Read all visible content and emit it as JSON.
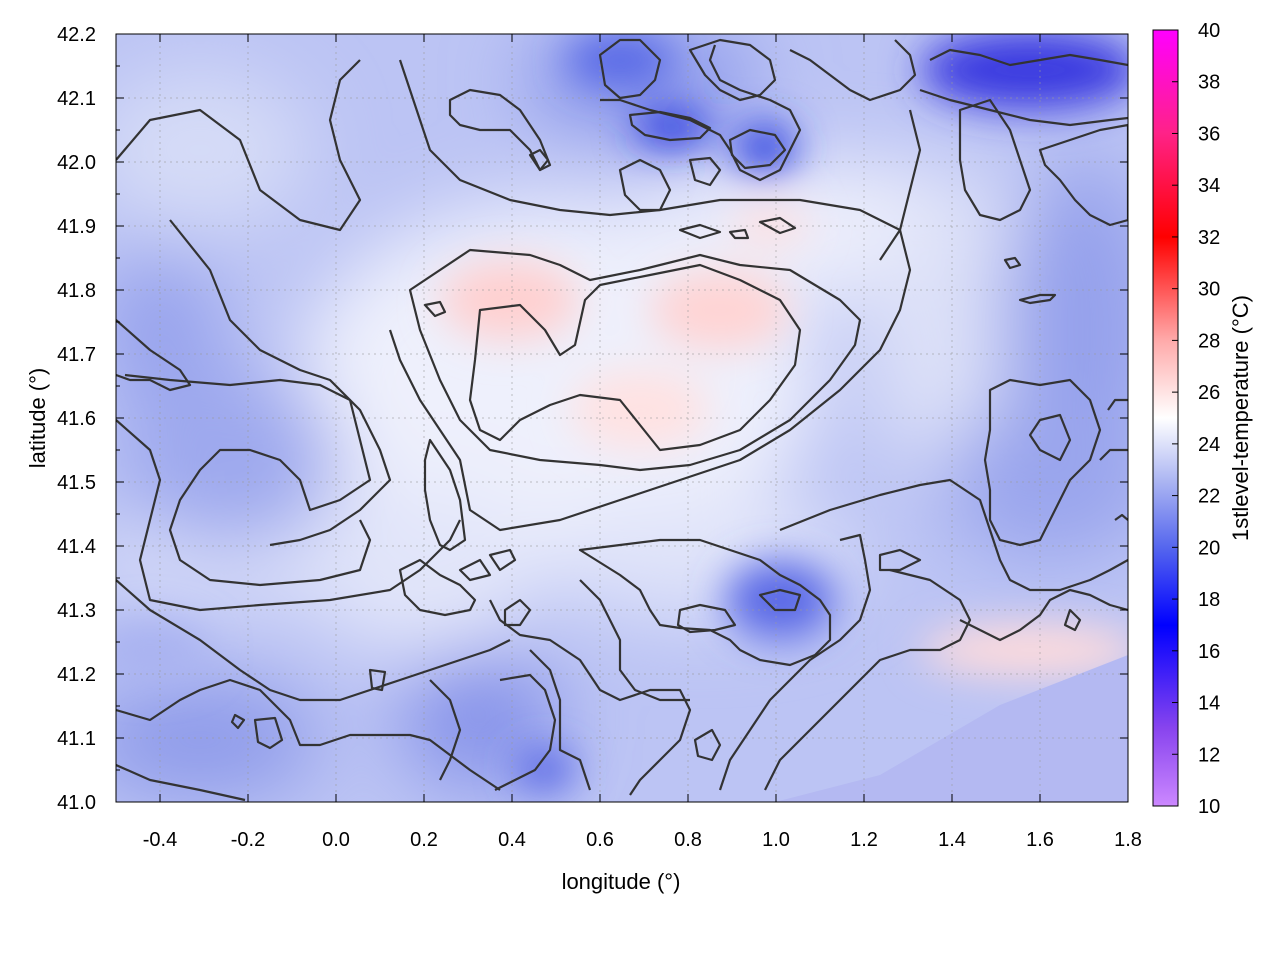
{
  "chart_data": {
    "type": "heatmap",
    "title": "",
    "xlabel": "longitude (°)",
    "ylabel": "latitude (°)",
    "colorbar_label": "1stlevel-temperature (°C)",
    "xlim": [
      -0.5,
      1.8
    ],
    "ylim": [
      41.0,
      42.2
    ],
    "zlim": [
      10,
      40
    ],
    "x_ticks": [
      "-0.4",
      "-0.2",
      "0.0",
      "0.2",
      "0.4",
      "0.6",
      "0.8",
      "1.0",
      "1.2",
      "1.4",
      "1.6",
      "1.8"
    ],
    "x_tick_values": [
      -0.4,
      -0.2,
      0.0,
      0.2,
      0.4,
      0.6,
      0.8,
      1.0,
      1.2,
      1.4,
      1.6,
      1.8
    ],
    "y_ticks": [
      "41.0",
      "41.1",
      "41.2",
      "41.3",
      "41.4",
      "41.5",
      "41.6",
      "41.7",
      "41.8",
      "41.9",
      "42.0",
      "42.1",
      "42.2"
    ],
    "y_tick_values": [
      41.0,
      41.1,
      41.2,
      41.3,
      41.4,
      41.5,
      41.6,
      41.7,
      41.8,
      41.9,
      42.0,
      42.1,
      42.2
    ],
    "colorbar_ticks": [
      "10",
      "12",
      "14",
      "16",
      "18",
      "20",
      "22",
      "24",
      "26",
      "28",
      "30",
      "32",
      "34",
      "36",
      "38",
      "40"
    ],
    "colorbar_tick_values": [
      10,
      12,
      14,
      16,
      18,
      20,
      22,
      24,
      26,
      28,
      30,
      32,
      34,
      36,
      38,
      40
    ],
    "colormap": [
      {
        "value": 10,
        "color": "#cc88ff"
      },
      {
        "value": 13,
        "color": "#8844ee"
      },
      {
        "value": 17,
        "color": "#0000ff"
      },
      {
        "value": 20,
        "color": "#5566ee"
      },
      {
        "value": 22.5,
        "color": "#aab4f2"
      },
      {
        "value": 25,
        "color": "#ffffff"
      },
      {
        "value": 28,
        "color": "#ffaaaa"
      },
      {
        "value": 32,
        "color": "#ff0000"
      },
      {
        "value": 36,
        "color": "#ff2288"
      },
      {
        "value": 40,
        "color": "#ff00ff"
      }
    ],
    "grid": true,
    "warm_regions": [
      {
        "lon": 0.45,
        "lat": 41.77,
        "temp": 26.5
      },
      {
        "lon": 0.85,
        "lat": 41.72,
        "temp": 26.0
      },
      {
        "lon": 0.7,
        "lat": 41.58,
        "temp": 25.5
      },
      {
        "lon": 1.4,
        "lat": 41.22,
        "temp": 25.5
      }
    ],
    "cool_regions": [
      {
        "lon": 0.75,
        "lat": 42.05,
        "temp": 17.5
      },
      {
        "lon": 1.0,
        "lat": 42.0,
        "temp": 18.5
      },
      {
        "lon": 1.6,
        "lat": 42.15,
        "temp": 16.5
      },
      {
        "lon": 0.85,
        "lat": 41.3,
        "temp": 20.0
      },
      {
        "lon": 0.45,
        "lat": 41.05,
        "temp": 19.5
      }
    ]
  }
}
